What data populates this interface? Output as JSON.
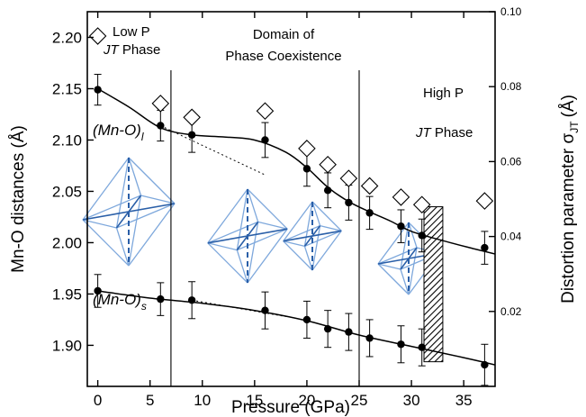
{
  "chart_data": {
    "type": "scatter",
    "xlabel": "Pressure (GPa)",
    "ylabel_left": "Mn-O distances (Å)",
    "ylabel_right": "Distortion parameter σ",
    "ylabel_right_sub": "JT",
    "ylabel_right_unit": "(Å)",
    "xlim": [
      -1,
      38
    ],
    "ylim_left": [
      1.86,
      2.225
    ],
    "ylim_right": [
      0.0,
      0.1
    ],
    "x_ticks": [
      0,
      5,
      10,
      15,
      20,
      25,
      30,
      35
    ],
    "y_left_ticks": [
      "1.90",
      "1.95",
      "2.00",
      "2.05",
      "2.10",
      "2.15",
      "2.20"
    ],
    "y_right_ticks": [
      "0.02",
      "0.04",
      "0.06",
      "0.08",
      "0.10"
    ],
    "series": [
      {
        "name": "(Mn-O)l",
        "axis": "left",
        "marker": "filled-circle",
        "x": [
          0,
          6,
          9,
          16,
          20,
          22,
          24,
          26,
          29,
          31,
          37
        ],
        "y": [
          2.149,
          2.114,
          2.105,
          2.1,
          2.072,
          2.051,
          2.039,
          2.029,
          2.016,
          2.007,
          1.995
        ],
        "yerr": [
          0.015,
          0.015,
          0.017,
          0.017,
          0.017,
          0.017,
          0.017,
          0.016,
          0.016,
          0.016,
          0.016
        ]
      },
      {
        "name": "(Mn-O)s",
        "axis": "left",
        "marker": "filled-circle",
        "x": [
          0,
          6,
          9,
          16,
          20,
          22,
          24,
          26,
          29,
          31,
          37
        ],
        "y": [
          1.953,
          1.945,
          1.944,
          1.934,
          1.925,
          1.916,
          1.913,
          1.907,
          1.901,
          1.898,
          1.881
        ],
        "yerr": [
          0.016,
          0.016,
          0.018,
          0.018,
          0.018,
          0.018,
          0.018,
          0.018,
          0.018,
          0.018,
          0.02
        ]
      },
      {
        "name": "σJT",
        "axis": "right",
        "marker": "open-diamond",
        "x": [
          0,
          6,
          9,
          16,
          20,
          22,
          24,
          26,
          29,
          31,
          37
        ],
        "y": [
          0.0935,
          0.0755,
          0.0718,
          0.0735,
          0.0635,
          0.0592,
          0.0555,
          0.0535,
          0.0505,
          0.0485,
          0.0495
        ]
      }
    ],
    "fit_lines": {
      "long_x": [
        0,
        3,
        6,
        9,
        12,
        15,
        18,
        20,
        22,
        24,
        26,
        28,
        30,
        33,
        36,
        38
      ],
      "long_y": [
        2.15,
        2.132,
        2.112,
        2.105,
        2.103,
        2.1,
        2.088,
        2.073,
        2.054,
        2.04,
        2.03,
        2.021,
        2.011,
        2.002,
        1.994,
        1.989
      ],
      "long_extrap_x": [
        6,
        11,
        16
      ],
      "long_extrap_y": [
        2.114,
        2.09,
        2.066
      ],
      "short_x": [
        0,
        5,
        10,
        15,
        20,
        25,
        30,
        35,
        38
      ],
      "short_y": [
        1.953,
        1.946,
        1.941,
        1.934,
        1.924,
        1.91,
        1.899,
        1.888,
        1.881
      ],
      "short_extrap_x": [
        9,
        18
      ],
      "short_extrap_y": [
        1.944,
        1.928
      ]
    },
    "phase_boundaries_x": [
      7,
      25
    ],
    "hatched_region_x": [
      31.2,
      33
    ],
    "hatched_region_y": [
      1.884,
      2.035
    ],
    "annotations": {
      "low_p_line1": "Low  P",
      "low_p_line2_italic": "JT",
      "low_p_line2_rest": " Phase",
      "domain_line1": "Domain  of",
      "domain_line2": "Phase Coexistence",
      "high_p_line1": "High P",
      "high_p_line2_italic": "JT",
      "high_p_line2_rest": " Phase",
      "label_long": "(Mn-O)",
      "label_long_sub": "l",
      "label_short": "(Mn-O)",
      "label_short_sub": "s"
    },
    "grid": false
  }
}
